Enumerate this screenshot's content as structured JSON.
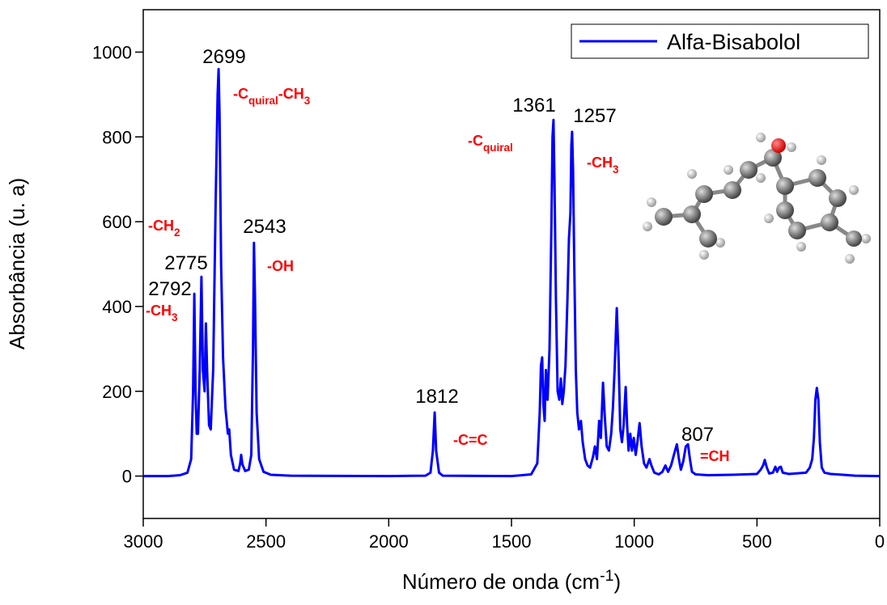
{
  "chart_data": {
    "type": "line",
    "x_label": [
      "Número de onda (cm",
      "-1",
      ")"
    ],
    "y_label": "Absorbância (u. a)",
    "xlim": [
      3000,
      0
    ],
    "ylim": [
      -100,
      1100
    ],
    "xticks": [
      3000,
      2500,
      2000,
      1500,
      1000,
      500,
      0
    ],
    "yticks": [
      0,
      200,
      400,
      600,
      800,
      1000
    ],
    "legend": "top-right",
    "peak_labels": [
      "2699",
      "2543",
      "2775",
      "2792",
      "1812",
      "1361",
      "1257",
      "807"
    ],
    "group_labels": [
      [
        "-C",
        "quiral",
        "-CH",
        "3"
      ],
      [
        "-OH"
      ],
      [
        "-CH",
        "2"
      ],
      [
        "-CH",
        "3"
      ],
      [
        "-C=C"
      ],
      [
        "-C",
        "quiral"
      ],
      [
        "-CH",
        "3"
      ],
      [
        "=CH"
      ]
    ],
    "x": [
      3000,
      2900,
      2850,
      2820,
      2805,
      2797,
      2792,
      2787,
      2782,
      2777,
      2770,
      2763,
      2757,
      2750,
      2745,
      2740,
      2732,
      2725,
      2715,
      2705,
      2697,
      2693,
      2689,
      2683,
      2675,
      2665,
      2655,
      2650,
      2643,
      2630,
      2612,
      2605,
      2601,
      2596,
      2585,
      2570,
      2560,
      2553,
      2549,
      2545,
      2538,
      2528,
      2510,
      2480,
      2400,
      2000,
      1850,
      1830,
      1820,
      1813,
      1807,
      1795,
      1780,
      1500,
      1420,
      1395,
      1385,
      1380,
      1375,
      1370,
      1365,
      1360,
      1353,
      1345,
      1337,
      1333,
      1329,
      1325,
      1319,
      1312,
      1305,
      1299,
      1293,
      1287,
      1280,
      1272,
      1266,
      1260,
      1256,
      1253,
      1249,
      1244,
      1238,
      1232,
      1225,
      1217,
      1210,
      1200,
      1190,
      1180,
      1168,
      1160,
      1152,
      1143,
      1136,
      1127,
      1120,
      1112,
      1103,
      1094,
      1087,
      1080,
      1071,
      1064,
      1057,
      1050,
      1043,
      1035,
      1029,
      1023,
      1016,
      1009,
      1002,
      994,
      987,
      978,
      970,
      960,
      950,
      938,
      930,
      918,
      900,
      885,
      873,
      862,
      850,
      836,
      826,
      818,
      810,
      800,
      790,
      781,
      773,
      765,
      750,
      700,
      600,
      500,
      485,
      475,
      468,
      460,
      450,
      435,
      425,
      418,
      410,
      403,
      395,
      370,
      300,
      285,
      275,
      268,
      262,
      256,
      250,
      244,
      236,
      225,
      200,
      150,
      100,
      0
    ],
    "series": [
      {
        "name": "Alfa-Bisabolol",
        "color": "#0000ff",
        "values": [
          0,
          0,
          2,
          8,
          40,
          200,
          430,
          200,
          100,
          100,
          250,
          470,
          250,
          200,
          360,
          250,
          120,
          110,
          250,
          650,
          900,
          960,
          850,
          500,
          280,
          160,
          100,
          110,
          50,
          15,
          12,
          30,
          50,
          28,
          12,
          15,
          50,
          300,
          550,
          430,
          150,
          40,
          10,
          3,
          1,
          0,
          1,
          8,
          60,
          150,
          60,
          8,
          1,
          0,
          4,
          30,
          150,
          260,
          280,
          170,
          130,
          250,
          180,
          300,
          600,
          800,
          840,
          700,
          420,
          200,
          180,
          230,
          170,
          200,
          260,
          420,
          560,
          620,
          780,
          812,
          720,
          480,
          250,
          150,
          110,
          130,
          80,
          40,
          25,
          20,
          45,
          70,
          40,
          130,
          90,
          220,
          140,
          70,
          60,
          100,
          160,
          250,
          396,
          280,
          110,
          80,
          120,
          210,
          120,
          60,
          100,
          60,
          90,
          50,
          80,
          125,
          70,
          30,
          20,
          40,
          25,
          8,
          4,
          10,
          25,
          10,
          25,
          55,
          75,
          40,
          15,
          35,
          70,
          75,
          40,
          10,
          4,
          2,
          3,
          5,
          15,
          25,
          38,
          20,
          6,
          8,
          22,
          10,
          20,
          22,
          8,
          5,
          8,
          20,
          40,
          90,
          180,
          208,
          180,
          80,
          20,
          8,
          5,
          3,
          1,
          0
        ]
      }
    ]
  }
}
